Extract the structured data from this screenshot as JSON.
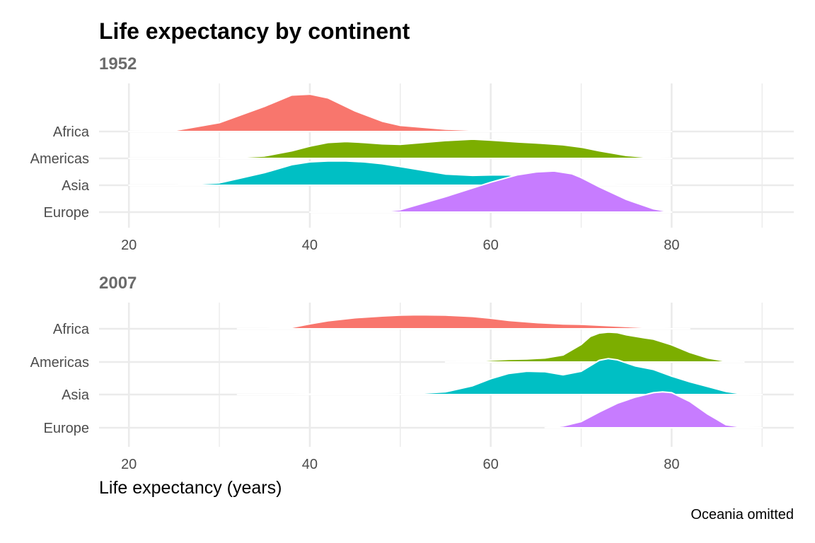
{
  "chart_data": {
    "type": "ridgeline",
    "title": "Life expectancy by continent",
    "xlabel": "Life expectancy (years)",
    "caption": "Oceania omitted",
    "x_ticks": [
      20,
      40,
      60,
      80
    ],
    "xlim": [
      16.7,
      93.5
    ],
    "categories": [
      "Africa",
      "Americas",
      "Asia",
      "Europe"
    ],
    "colors": {
      "Africa": "#F8766D",
      "Americas": "#7CAE00",
      "Asia": "#00BFC4",
      "Europe": "#C77CFF"
    },
    "panels": [
      {
        "name": "1952",
        "series": [
          {
            "name": "Africa",
            "x": [
              20,
              25,
              30,
              35,
              38,
              40,
              42,
              45,
              48,
              50,
              55,
              60,
              65,
              70,
              75,
              80
            ],
            "y": [
              0,
              0.02,
              0.19,
              0.54,
              0.78,
              0.8,
              0.72,
              0.44,
              0.22,
              0.13,
              0.05,
              0.01,
              0,
              0,
              0,
              0
            ]
          },
          {
            "name": "Americas",
            "x": [
              20,
              25,
              30,
              35,
              38,
              40,
              42,
              44,
              46,
              48,
              50,
              55,
              58,
              60,
              63,
              65,
              68,
              70,
              72,
              75,
              78,
              80
            ],
            "y": [
              0,
              0,
              0,
              0.05,
              0.16,
              0.26,
              0.34,
              0.36,
              0.34,
              0.31,
              0.3,
              0.38,
              0.41,
              0.39,
              0.35,
              0.33,
              0.29,
              0.24,
              0.16,
              0.06,
              0.01,
              0
            ]
          },
          {
            "name": "Asia",
            "x": [
              20,
              25,
              30,
              35,
              38,
              40,
              42,
              44,
              46,
              48,
              50,
              55,
              58,
              60,
              62,
              63,
              65,
              68,
              70,
              75,
              80
            ],
            "y": [
              0,
              0,
              0.05,
              0.27,
              0.44,
              0.5,
              0.52,
              0.52,
              0.5,
              0.46,
              0.4,
              0.24,
              0.21,
              0.22,
              0.22,
              0.2,
              0.14,
              0.05,
              0.02,
              0,
              0
            ]
          },
          {
            "name": "Europe",
            "x": [
              40,
              42,
              44,
              46,
              48,
              50,
              55,
              60,
              63,
              65,
              67,
              69,
              70,
              72,
              75,
              78,
              80
            ],
            "y": [
              0,
              0.01,
              0.02,
              0.02,
              0.01,
              0.05,
              0.33,
              0.64,
              0.8,
              0.86,
              0.88,
              0.82,
              0.74,
              0.54,
              0.27,
              0.07,
              0
            ]
          }
        ]
      },
      {
        "name": "2007",
        "series": [
          {
            "name": "Africa",
            "x": [
              32,
              35,
              38,
              40,
              42,
              45,
              48,
              50,
              52,
              55,
              58,
              60,
              62,
              65,
              68,
              70,
              72,
              75,
              80,
              82
            ],
            "y": [
              0,
              0,
              0.03,
              0.11,
              0.18,
              0.25,
              0.29,
              0.31,
              0.32,
              0.31,
              0.28,
              0.24,
              0.19,
              0.14,
              0.11,
              0.1,
              0.08,
              0.05,
              0,
              0
            ]
          },
          {
            "name": "Americas",
            "x": [
              55,
              58,
              60,
              62,
              64,
              66,
              68,
              70,
              71,
              72,
              73,
              74,
              75,
              77,
              78,
              80,
              82,
              84,
              86,
              88
            ],
            "y": [
              0,
              0.01,
              0.04,
              0.06,
              0.07,
              0.09,
              0.16,
              0.4,
              0.58,
              0.66,
              0.68,
              0.67,
              0.62,
              0.55,
              0.52,
              0.39,
              0.22,
              0.09,
              0.02,
              0
            ]
          },
          {
            "name": "Asia",
            "x": [
              32,
              38,
              40,
              42,
              44,
              46,
              48,
              50,
              55,
              58,
              60,
              62,
              64,
              66,
              68,
              70,
              72,
              73,
              74,
              76,
              78,
              80,
              82,
              84,
              86,
              88,
              90
            ],
            "y": [
              0,
              0,
              0.01,
              0.02,
              0.03,
              0.02,
              0.01,
              0,
              0.06,
              0.2,
              0.36,
              0.48,
              0.53,
              0.52,
              0.45,
              0.53,
              0.78,
              0.82,
              0.79,
              0.65,
              0.57,
              0.42,
              0.29,
              0.18,
              0.07,
              0.01,
              0
            ]
          },
          {
            "name": "Europe",
            "x": [
              66,
              68,
              70,
              72,
              74,
              76,
              78,
              79,
              80,
              82,
              84,
              86,
              88,
              90
            ],
            "y": [
              0,
              0.04,
              0.14,
              0.36,
              0.56,
              0.7,
              0.8,
              0.82,
              0.8,
              0.6,
              0.31,
              0.07,
              0.01,
              0
            ]
          }
        ]
      }
    ]
  }
}
